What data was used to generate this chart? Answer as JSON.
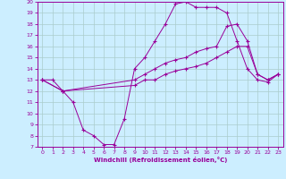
{
  "xlabel": "Windchill (Refroidissement éolien,°C)",
  "bg_color": "#cceeff",
  "line_color": "#990099",
  "grid_color": "#aacccc",
  "xlim": [
    -0.5,
    23.5
  ],
  "ylim": [
    7,
    20
  ],
  "xticks": [
    0,
    1,
    2,
    3,
    4,
    5,
    6,
    7,
    8,
    9,
    10,
    11,
    12,
    13,
    14,
    15,
    16,
    17,
    18,
    19,
    20,
    21,
    22,
    23
  ],
  "yticks": [
    7,
    8,
    9,
    10,
    11,
    12,
    13,
    14,
    15,
    16,
    17,
    18,
    19,
    20
  ],
  "series": [
    {
      "x": [
        0,
        1,
        2,
        3,
        4,
        5,
        6,
        7,
        8,
        9,
        10,
        11,
        12,
        13,
        14,
        15,
        16,
        17,
        18,
        19,
        20,
        21,
        22,
        23
      ],
      "y": [
        13,
        13,
        12,
        11,
        8.5,
        8,
        7.2,
        7.2,
        9.5,
        14,
        15,
        16.5,
        18,
        19.8,
        20,
        19.5,
        19.5,
        19.5,
        19,
        16.5,
        14,
        13,
        12.8,
        13.5
      ],
      "has_markers": true
    },
    {
      "x": [
        0,
        2,
        9,
        10,
        11,
        12,
        13,
        14,
        15,
        16,
        17,
        18,
        19,
        20,
        21,
        22,
        23
      ],
      "y": [
        13,
        12,
        13,
        13.5,
        14,
        14.5,
        14.8,
        15,
        15.5,
        15.8,
        16,
        17.8,
        18,
        16.5,
        13.5,
        13,
        13.5
      ],
      "has_markers": true
    },
    {
      "x": [
        0,
        2,
        9,
        10,
        11,
        12,
        13,
        14,
        15,
        16,
        17,
        18,
        19,
        20,
        21,
        22,
        23
      ],
      "y": [
        13,
        12,
        12.5,
        13,
        13,
        13.5,
        13.8,
        14,
        14.2,
        14.5,
        15,
        15.5,
        16,
        16,
        13.5,
        13,
        13.5
      ],
      "has_markers": true
    }
  ]
}
